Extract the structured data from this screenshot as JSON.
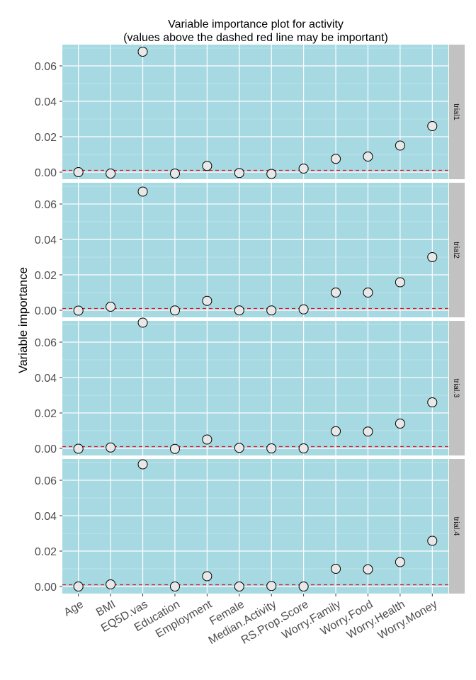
{
  "chart_data": {
    "type": "scatter",
    "title": "Variable importance plot for activity",
    "subtitle": "(values above the dashed red line may be important)",
    "xlabel": "",
    "ylabel": "Variable importance",
    "categories": [
      "Age",
      "BMI",
      "EQ5D.vas",
      "Education",
      "Employment",
      "Female",
      "Median.Activity",
      "RS.Prop.Score",
      "Worry.Family",
      "Worry.Food",
      "Worry.Health",
      "Worry.Money"
    ],
    "ylim": [
      -0.004,
      0.072
    ],
    "yticks": [
      0.0,
      0.02,
      0.04,
      0.06
    ],
    "ytick_labels": [
      "0.00",
      "0.02",
      "0.04",
      "0.06"
    ],
    "threshold": 0.001,
    "grid": true,
    "panel_background": "#a6d9e2",
    "strip_background": "#c2c2c2",
    "threshold_color": "#e8101c",
    "point_fill": "#e8e8e8",
    "point_stroke": "#000000",
    "panels": [
      {
        "label": "trial1",
        "values": [
          0.0,
          -0.0008,
          0.068,
          -0.0008,
          0.0035,
          -0.0005,
          -0.001,
          0.002,
          0.0075,
          0.0088,
          0.015,
          0.026
        ]
      },
      {
        "label": "trial2",
        "values": [
          -0.0002,
          0.002,
          0.067,
          -0.0001,
          0.0053,
          -0.0001,
          -0.0001,
          0.0005,
          0.01,
          0.01,
          0.0158,
          0.03
        ]
      },
      {
        "label": "trial.3",
        "values": [
          -0.0002,
          0.0005,
          0.071,
          -0.0003,
          0.005,
          0.0003,
          0.0,
          0.0,
          0.0097,
          0.0095,
          0.014,
          0.026
        ]
      },
      {
        "label": "trial.4",
        "values": [
          0.0,
          0.0012,
          0.069,
          0.0,
          0.0058,
          0.0,
          0.0003,
          0.0,
          0.01,
          0.0097,
          0.0138,
          0.0258
        ]
      }
    ]
  }
}
